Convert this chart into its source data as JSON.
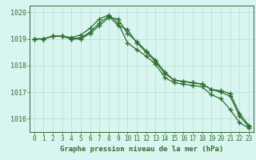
{
  "x": [
    0,
    1,
    2,
    3,
    4,
    5,
    6,
    7,
    8,
    9,
    10,
    11,
    12,
    13,
    14,
    15,
    16,
    17,
    18,
    19,
    20,
    21,
    22,
    23
  ],
  "series": [
    [
      1019.0,
      1019.0,
      1019.1,
      1019.1,
      1019.0,
      1019.0,
      1019.2,
      1019.5,
      1019.8,
      1019.75,
      1019.2,
      1018.9,
      1018.55,
      1018.2,
      1017.75,
      1017.45,
      1017.4,
      1017.35,
      1017.3,
      1017.1,
      1017.05,
      1016.95,
      1016.2,
      1015.75
    ],
    [
      1019.0,
      1019.0,
      1019.1,
      1019.1,
      1019.0,
      1019.05,
      1019.25,
      1019.6,
      1019.85,
      1019.5,
      1019.35,
      1018.85,
      1018.5,
      1018.15,
      1017.7,
      1017.45,
      1017.4,
      1017.35,
      1017.3,
      1017.1,
      1017.0,
      1016.85,
      1016.1,
      1015.7
    ],
    [
      1019.0,
      1019.0,
      1019.1,
      1019.1,
      1019.05,
      1019.15,
      1019.4,
      1019.75,
      1019.9,
      1019.6,
      1018.85,
      1018.6,
      1018.35,
      1018.05,
      1017.55,
      1017.35,
      1017.3,
      1017.25,
      1017.2,
      1016.9,
      1016.75,
      1016.35,
      1015.85,
      1015.65
    ]
  ],
  "ylim": [
    1015.5,
    1020.25
  ],
  "yticks": [
    1016,
    1017,
    1018,
    1019,
    1020
  ],
  "xlabel": "Graphe pression niveau de la mer (hPa)",
  "line_color": "#2d6e2d",
  "marker": "+",
  "bg_color": "#d8f5f0",
  "grid_color": "#b8ddd8",
  "font_color": "#2d6e2d"
}
